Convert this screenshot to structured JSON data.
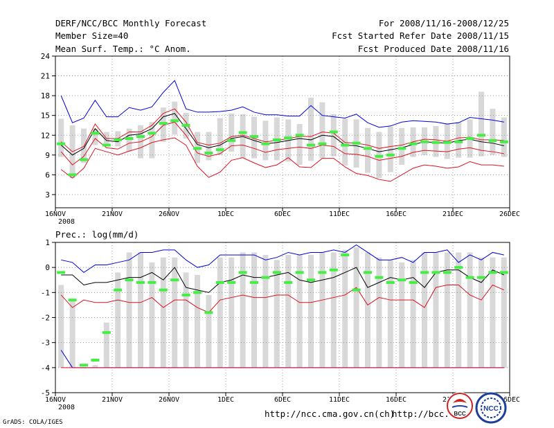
{
  "header": {
    "title": "DERF/NCC/BCC Monthly Forecast",
    "member_size": "Member Size=40",
    "variable_top": "Mean Surf. Temp.: °C Anom.",
    "period": "For 2008/11/16-2008/12/25",
    "started": "Fcst Started Refer Date 2008/11/15",
    "produced": "Fcst Produced Date 2008/11/16"
  },
  "footer": {
    "grads": "GrADS: COLA/IGES",
    "url1": "http://ncc.cma.gov.cn(ch)",
    "url2": "http://bcc.",
    "logo_bcc": "BCC",
    "logo_ncc": "NCC"
  },
  "colors": {
    "max_line": "#0000dd",
    "min_line": "#dd1122",
    "mean_line": "#000000",
    "obs_marker": "#44ee44",
    "box": "#d8d8d8"
  },
  "chart_data": [
    {
      "type": "line",
      "title": "Mean Surf. Temp.: °C Anom.",
      "xlabel": "",
      "ylabel": "",
      "x_tick_labels": [
        "16NOV",
        "21NOV",
        "26NOV",
        "1DEC",
        "6DEC",
        "11DEC",
        "16DEC",
        "21DEC",
        "26DEC"
      ],
      "x_tick_year": "2008",
      "y_ticks": [
        3,
        6,
        9,
        12,
        15,
        18,
        21,
        24
      ],
      "ylim": [
        1,
        24
      ],
      "grid": true,
      "series": [
        {
          "name": "max",
          "values": [
            18.0,
            13.9,
            14.6,
            17.3,
            14.8,
            14.8,
            16.2,
            15.8,
            16.3,
            18.5,
            20.3,
            16.0,
            15.5,
            15.5,
            15.6,
            15.8,
            16.3,
            15.5,
            15.1,
            15.1,
            14.9,
            14.9,
            16.5,
            15.0,
            14.8,
            14.6,
            15.2,
            13.9,
            13.2,
            13.4,
            14.0,
            14.2,
            14.1,
            14.0,
            13.7,
            13.9,
            14.7,
            14.5,
            14.3,
            14.0
          ]
        },
        {
          "name": "upper",
          "values": [
            11.0,
            9.5,
            10.3,
            13.7,
            11.5,
            11.5,
            12.5,
            12.5,
            13.5,
            15.3,
            16.0,
            14.0,
            10.9,
            10.5,
            10.8,
            11.8,
            12.0,
            11.5,
            11.0,
            11.2,
            11.5,
            11.8,
            11.8,
            12.5,
            12.3,
            10.9,
            10.8,
            10.5,
            10.0,
            10.3,
            10.5,
            11.0,
            11.4,
            11.3,
            11.1,
            11.6,
            11.7,
            11.3,
            11.3,
            11.2
          ]
        },
        {
          "name": "mean",
          "values": [
            10.5,
            9.0,
            10.0,
            13.0,
            11.2,
            11.0,
            12.0,
            12.2,
            13.0,
            14.8,
            15.3,
            13.0,
            10.6,
            10.1,
            10.5,
            11.5,
            11.8,
            11.2,
            10.7,
            10.9,
            11.2,
            11.5,
            11.3,
            12.0,
            11.8,
            10.5,
            10.4,
            10.0,
            9.5,
            9.8,
            10.1,
            10.6,
            11.0,
            10.9,
            10.8,
            11.2,
            11.4,
            11.0,
            10.8,
            10.4
          ]
        },
        {
          "name": "lower",
          "values": [
            9.5,
            7.5,
            8.8,
            11.5,
            10.1,
            9.9,
            10.8,
            11.0,
            11.8,
            13.5,
            14.0,
            12.0,
            9.3,
            8.8,
            9.2,
            10.4,
            10.5,
            10.0,
            9.4,
            9.8,
            10.0,
            10.2,
            10.0,
            10.5,
            10.3,
            9.2,
            9.1,
            8.8,
            8.2,
            8.5,
            8.8,
            9.4,
            9.7,
            9.6,
            9.5,
            9.9,
            10.1,
            9.7,
            9.5,
            9.2
          ]
        },
        {
          "name": "min",
          "values": [
            6.8,
            5.5,
            7.0,
            10.0,
            9.5,
            9.0,
            9.6,
            10.1,
            10.9,
            11.3,
            11.6,
            10.5,
            7.3,
            5.6,
            6.4,
            8.2,
            8.6,
            7.8,
            7.1,
            7.5,
            8.6,
            7.2,
            7.1,
            8.5,
            8.5,
            7.2,
            6.2,
            5.9,
            5.3,
            5.0,
            6.0,
            7.0,
            7.5,
            7.3,
            7.0,
            7.2,
            8.0,
            7.5,
            7.5,
            7.3
          ]
        }
      ],
      "observed": [
        10.7,
        6.0,
        8.3,
        12.3,
        10.5,
        11.3,
        11.5,
        11.8,
        12.3,
        13.8,
        14.2,
        13.5,
        10.0,
        9.3,
        9.8,
        11.2,
        12.4,
        11.8,
        10.7,
        11.3,
        11.6,
        12.0,
        10.5,
        10.7,
        12.5,
        10.5,
        10.8,
        10.0,
        8.8,
        9.0,
        10.0,
        10.7,
        11.0,
        10.9,
        10.9,
        11.0,
        11.5,
        12.0,
        11.2,
        11.0
      ],
      "box_upper": [
        14.5,
        13.5,
        13.0,
        13.0,
        12.5,
        12.6,
        13.0,
        13.5,
        14.0,
        16.2,
        17.1,
        15.4,
        12.5,
        12.5,
        14.6,
        15.3,
        15.2,
        14.8,
        14.2,
        14.7,
        14.4,
        13.7,
        17.7,
        17.0,
        15.2,
        14.5,
        14.4,
        13.1,
        12.5,
        13.3,
        13.1,
        13.2,
        13.2,
        13.4,
        13.8,
        14.0,
        14.4,
        18.6,
        16.0,
        14.7
      ],
      "box_lower": [
        8.7,
        5.5,
        7.8,
        10.5,
        10.5,
        10.3,
        9.5,
        8.5,
        8.5,
        11.0,
        12.1,
        11.5,
        7.8,
        8.2,
        9.0,
        9.5,
        8.5,
        8.5,
        8.2,
        8.2,
        8.0,
        7.5,
        8.1,
        8.5,
        8.8,
        7.4,
        7.1,
        6.3,
        5.5,
        6.4,
        7.5,
        8.7,
        9.0,
        8.7,
        8.4,
        8.6,
        8.6,
        8.8,
        9.0,
        8.7
      ]
    },
    {
      "type": "line",
      "title": "Prec.: log(mm/d)",
      "xlabel": "",
      "ylabel": "",
      "x_tick_labels": [
        "16NOV",
        "21NOV",
        "26NOV",
        "1DEC",
        "6DEC",
        "11DEC",
        "16DEC",
        "21DEC",
        "26DEC"
      ],
      "x_tick_year": "2008",
      "y_ticks": [
        -5,
        -4,
        -3,
        -2,
        -1,
        0,
        1
      ],
      "ylim": [
        -5,
        1
      ],
      "grid": true,
      "series": [
        {
          "name": "max",
          "values": [
            0.3,
            0.2,
            -0.2,
            0.1,
            0.1,
            0.2,
            0.3,
            0.6,
            0.6,
            0.7,
            0.7,
            0.3,
            0.0,
            0.1,
            0.5,
            0.5,
            0.5,
            0.5,
            0.3,
            0.4,
            0.6,
            0.5,
            0.6,
            0.6,
            0.7,
            0.6,
            0.9,
            0.6,
            0.3,
            0.3,
            0.4,
            0.2,
            0.6,
            0.6,
            0.7,
            0.2,
            0.5,
            0.3,
            0.6,
            0.5
          ]
        },
        {
          "name": "mean",
          "values": [
            -0.3,
            -0.3,
            -0.7,
            -0.6,
            -0.6,
            -0.5,
            -0.4,
            -0.4,
            -0.2,
            -0.5,
            0.0,
            -0.8,
            -0.9,
            -1.0,
            -0.6,
            -0.5,
            -0.3,
            -0.4,
            -0.4,
            -0.3,
            -0.2,
            -0.5,
            -0.6,
            -0.5,
            -0.4,
            -0.2,
            0.0,
            -0.8,
            -0.6,
            -0.4,
            -0.5,
            -0.4,
            -0.8,
            -0.2,
            -0.1,
            -0.1,
            -0.4,
            -0.6,
            -0.1,
            -0.3
          ]
        },
        {
          "name": "lower",
          "values": [
            -1.1,
            -1.6,
            -1.3,
            -1.4,
            -1.4,
            -1.3,
            -1.4,
            -1.4,
            -1.2,
            -1.6,
            -1.3,
            -1.3,
            -1.6,
            -1.8,
            -1.3,
            -1.2,
            -1.1,
            -1.2,
            -1.2,
            -1.1,
            -1.1,
            -1.4,
            -1.4,
            -1.3,
            -1.2,
            -1.1,
            -0.8,
            -1.5,
            -1.2,
            -1.3,
            -1.3,
            -1.3,
            -1.6,
            -0.8,
            -0.7,
            -0.7,
            -1.1,
            -1.3,
            -0.7,
            -0.9
          ]
        },
        {
          "name": "min",
          "values": [
            -3.3,
            -4.0,
            -4.0,
            -4.0,
            -4.0,
            -4.0,
            -4.0,
            -4.0,
            -4.0,
            -4.0,
            -4.0,
            -4.0,
            -4.0,
            -4.0,
            -4.0,
            -4.0,
            -4.0,
            -4.0,
            -4.0,
            -4.0,
            -4.0,
            -4.0,
            -4.0,
            -4.0,
            -4.0,
            -4.0,
            -4.0,
            -4.0,
            -4.0,
            -4.0,
            -4.0,
            -4.0,
            -4.0,
            -4.0,
            -4.0,
            -4.0,
            -4.0,
            -4.0,
            -4.0,
            -4.0
          ]
        },
        {
          "name": "floor",
          "values": [
            -4.0,
            -4.0,
            -4.0,
            -4.0,
            -4.0,
            -4.0,
            -4.0,
            -4.0,
            -4.0,
            -4.0,
            -4.0,
            -4.0,
            -4.0,
            -4.0,
            -4.0,
            -4.0,
            -4.0,
            -4.0,
            -4.0,
            -4.0,
            -4.0,
            -4.0,
            -4.0,
            -4.0,
            -4.0,
            -4.0,
            -4.0,
            -4.0,
            -4.0,
            -4.0,
            -4.0,
            -4.0,
            -4.0,
            -4.0,
            -4.0,
            -4.0,
            -4.0,
            -4.0,
            -4.0,
            -4.0
          ]
        }
      ],
      "observed": [
        -0.2,
        -1.3,
        -3.9,
        -3.7,
        -2.6,
        -0.9,
        -0.5,
        -0.6,
        -0.6,
        -0.9,
        -0.5,
        -1.1,
        -1.0,
        -1.8,
        -0.6,
        -0.6,
        -0.2,
        -0.6,
        -0.4,
        -0.2,
        -0.6,
        -0.2,
        -0.5,
        -0.2,
        -0.1,
        0.5,
        -0.9,
        -0.2,
        -0.4,
        -0.6,
        -0.5,
        -0.6,
        -0.2,
        -0.2,
        -0.2,
        0.0,
        -0.4,
        -0.4,
        -0.2,
        -0.2
      ],
      "box_upper": [
        -0.7,
        -1.3,
        -4.0,
        -3.9,
        -2.2,
        -0.2,
        0.6,
        0.6,
        0.2,
        0.4,
        0.4,
        -0.2,
        -0.3,
        -1.1,
        0.4,
        0.4,
        0.6,
        0.6,
        0.5,
        0.3,
        0.5,
        0.5,
        0.5,
        0.6,
        0.6,
        0.7,
        0.8,
        0.6,
        0.4,
        0.3,
        0.2,
        0.3,
        0.6,
        0.6,
        0.6,
        0.6,
        0.6,
        0.4,
        0.4,
        0.4
      ],
      "box_lower": [
        -4.0,
        -4.0,
        -4.0,
        -4.0,
        -4.0,
        -4.0,
        -4.0,
        -4.0,
        -4.0,
        -4.0,
        -4.0,
        -4.0,
        -4.0,
        -4.0,
        -4.0,
        -4.0,
        -4.0,
        -4.0,
        -4.0,
        -4.0,
        -4.0,
        -4.0,
        -4.0,
        -4.0,
        -4.0,
        -4.0,
        -4.0,
        -4.0,
        -4.0,
        -4.0,
        -4.0,
        -4.0,
        -4.0,
        -4.0,
        -4.0,
        -4.0,
        -4.0,
        -4.0,
        -4.0,
        -4.0
      ]
    }
  ]
}
